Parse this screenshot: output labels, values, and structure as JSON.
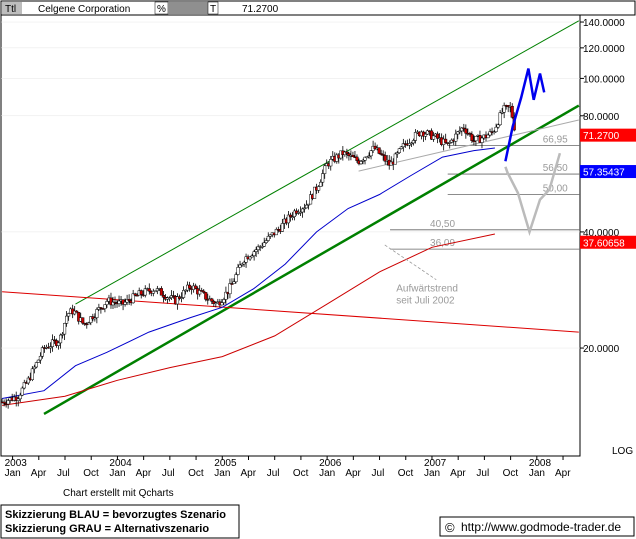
{
  "header": {
    "ttl_label": "Ttl",
    "title": "Celgene Corporation",
    "pct_label": "%",
    "t_label": "T",
    "last_value": "71.2700"
  },
  "footer": {
    "credit": "Chart erstellt mit Qcharts",
    "legend_blue": "Skizzierung BLAU = bevorzugtes Szenario",
    "legend_grey": "Skizzierung GRAU = Alternativszenario",
    "copyright_symbol": "©",
    "url": "http://www.godmode-trader.de"
  },
  "chart_data": {
    "type": "candlestick",
    "scale": "log",
    "ylim": [
      10.5,
      146
    ],
    "y_ticks": [
      {
        "value": 140,
        "label": "140.0000"
      },
      {
        "value": 120,
        "label": "120.0000"
      },
      {
        "value": 100,
        "label": "100.0000"
      },
      {
        "value": 80,
        "label": "80.0000"
      },
      {
        "value": 40,
        "label": "40.0000"
      },
      {
        "value": 20,
        "label": "20.0000"
      }
    ],
    "log_label": "LOG",
    "x_month_ticks": [
      {
        "t": 2003.0,
        "label": "Jan"
      },
      {
        "t": 2003.25,
        "label": "Apr"
      },
      {
        "t": 2003.5,
        "label": "Jul"
      },
      {
        "t": 2003.75,
        "label": "Oct"
      },
      {
        "t": 2004.0,
        "label": "Jan"
      },
      {
        "t": 2004.25,
        "label": "Apr"
      },
      {
        "t": 2004.5,
        "label": "Jul"
      },
      {
        "t": 2004.75,
        "label": "Oct"
      },
      {
        "t": 2005.0,
        "label": "Jan"
      },
      {
        "t": 2005.25,
        "label": "Apr"
      },
      {
        "t": 2005.5,
        "label": "Jul"
      },
      {
        "t": 2005.75,
        "label": "Oct"
      },
      {
        "t": 2006.0,
        "label": "Jan"
      },
      {
        "t": 2006.25,
        "label": "Apr"
      },
      {
        "t": 2006.5,
        "label": "Jul"
      },
      {
        "t": 2006.75,
        "label": "Oct"
      },
      {
        "t": 2007.0,
        "label": "Jan"
      },
      {
        "t": 2007.25,
        "label": "Apr"
      },
      {
        "t": 2007.5,
        "label": "Jul"
      },
      {
        "t": 2007.75,
        "label": "Oct"
      },
      {
        "t": 2008.0,
        "label": "Jan"
      },
      {
        "t": 2008.25,
        "label": "Apr"
      }
    ],
    "x_year_labels": [
      {
        "t": 2003.0,
        "label": "2003"
      },
      {
        "t": 2004.0,
        "label": "2004"
      },
      {
        "t": 2005.0,
        "label": "2005"
      },
      {
        "t": 2006.0,
        "label": "2006"
      },
      {
        "t": 2007.0,
        "label": "2007"
      },
      {
        "t": 2008.0,
        "label": "2008"
      }
    ],
    "price_path": [
      [
        2002.9,
        14.5
      ],
      [
        2003.05,
        15.0
      ],
      [
        2003.15,
        16.5
      ],
      [
        2003.3,
        20.0
      ],
      [
        2003.45,
        21.0
      ],
      [
        2003.52,
        24.5
      ],
      [
        2003.58,
        25.0
      ],
      [
        2003.68,
        23.0
      ],
      [
        2003.78,
        24.5
      ],
      [
        2003.9,
        26.5
      ],
      [
        2004.05,
        26.0
      ],
      [
        2004.2,
        27.5
      ],
      [
        2004.35,
        28.5
      ],
      [
        2004.55,
        26.5
      ],
      [
        2004.7,
        29.0
      ],
      [
        2004.85,
        27.0
      ],
      [
        2004.95,
        26.0
      ],
      [
        2005.05,
        28.0
      ],
      [
        2005.1,
        29.5
      ],
      [
        2005.2,
        34.0
      ],
      [
        2005.35,
        36.5
      ],
      [
        2005.55,
        41.0
      ],
      [
        2005.7,
        45.5
      ],
      [
        2005.8,
        47.0
      ],
      [
        2005.9,
        52.0
      ],
      [
        2006.0,
        60.0
      ],
      [
        2006.15,
        64.0
      ],
      [
        2006.3,
        61.0
      ],
      [
        2006.45,
        66.0
      ],
      [
        2006.6,
        59.5
      ],
      [
        2006.75,
        68.0
      ],
      [
        2006.9,
        73.0
      ],
      [
        2007.05,
        70.0
      ],
      [
        2007.15,
        67.0
      ],
      [
        2007.3,
        75.0
      ],
      [
        2007.4,
        69.0
      ],
      [
        2007.5,
        70.5
      ],
      [
        2007.58,
        72.5
      ],
      [
        2007.68,
        83.0
      ],
      [
        2007.75,
        84.0
      ],
      [
        2007.8,
        71.27
      ]
    ],
    "moving_averages": [
      {
        "color": "#0000cc",
        "points": [
          [
            2002.9,
            14.8
          ],
          [
            2003.3,
            15.5
          ],
          [
            2003.6,
            18.0
          ],
          [
            2003.9,
            19.5
          ],
          [
            2004.3,
            22.0
          ],
          [
            2004.7,
            24.0
          ],
          [
            2005.0,
            25.5
          ],
          [
            2005.3,
            28.5
          ],
          [
            2005.6,
            33.0
          ],
          [
            2005.9,
            40.0
          ],
          [
            2006.2,
            46.0
          ],
          [
            2006.5,
            50.0
          ],
          [
            2006.8,
            56.0
          ],
          [
            2007.1,
            62.5
          ],
          [
            2007.4,
            65.0
          ],
          [
            2007.6,
            66.0
          ]
        ]
      },
      {
        "color": "#cc0000",
        "points": [
          [
            2002.9,
            14.2
          ],
          [
            2003.5,
            15.0
          ],
          [
            2004.0,
            16.5
          ],
          [
            2004.5,
            17.8
          ],
          [
            2005.0,
            19.0
          ],
          [
            2005.5,
            21.5
          ],
          [
            2006.0,
            26.0
          ],
          [
            2006.5,
            31.5
          ],
          [
            2007.0,
            36.5
          ],
          [
            2007.6,
            39.5
          ]
        ]
      }
    ],
    "trendlines": [
      {
        "color": "#008000",
        "width": 2.5,
        "points": [
          [
            2003.3,
            13.5
          ],
          [
            2008.4,
            85.0
          ]
        ]
      },
      {
        "color": "#008000",
        "width": 1.0,
        "points": [
          [
            2003.6,
            26.0
          ],
          [
            2008.4,
            141.0
          ]
        ]
      },
      {
        "color": "#dd0000",
        "width": 1.0,
        "points": [
          [
            2002.9,
            28.0
          ],
          [
            2008.4,
            22.0
          ]
        ]
      },
      {
        "color": "#aaaaaa",
        "width": 1.0,
        "points": [
          [
            2006.3,
            57.5
          ],
          [
            2008.4,
            78.0
          ]
        ]
      }
    ],
    "horizontal_levels": [
      {
        "value": 66.95,
        "label": "66,95",
        "t_start": 2007.15,
        "t_end": 2008.4
      },
      {
        "value": 56.5,
        "label": "56,50",
        "t_start": 2007.15,
        "t_end": 2008.4
      },
      {
        "value": 50.0,
        "label": "50,00",
        "t_start": 2007.15,
        "t_end": 2008.4
      },
      {
        "value": 40.5,
        "label": "40,50",
        "t_start": 2006.6,
        "t_end": 2008.4
      },
      {
        "value": 36.09,
        "label": "36,09",
        "t_start": 2006.6,
        "t_end": 2008.4
      }
    ],
    "scenarios": [
      {
        "name": "blau",
        "color": "#0000ee",
        "width": 2.5,
        "points": [
          [
            2007.7,
            61.0
          ],
          [
            2007.77,
            75.0
          ],
          [
            2007.85,
            89.0
          ],
          [
            2007.92,
            106.0
          ],
          [
            2007.97,
            88.0
          ],
          [
            2008.03,
            103.0
          ],
          [
            2008.07,
            92.0
          ]
        ]
      },
      {
        "name": "grau",
        "color": "#bbbbbb",
        "width": 2.5,
        "points": [
          [
            2007.7,
            59.0
          ],
          [
            2007.72,
            57.0
          ],
          [
            2007.82,
            50.5
          ],
          [
            2007.93,
            40.0
          ],
          [
            2008.03,
            48.5
          ],
          [
            2008.12,
            51.5
          ],
          [
            2008.22,
            64.0
          ]
        ]
      }
    ],
    "price_tags": [
      {
        "value": 71.27,
        "label": "71.2700",
        "bg": "#ff0000",
        "fg": "#ffffff"
      },
      {
        "value": 57.35437,
        "label": "57.35437",
        "bg": "#0000ff",
        "fg": "#ffffff"
      },
      {
        "value": 37.60658,
        "label": "37.60658",
        "bg": "#ff0000",
        "fg": "#ffffff"
      }
    ],
    "annotations": [
      {
        "text_lines": [
          "Aufwärtstrend",
          "seit Juli 2002"
        ],
        "anchor_t": 2006.85,
        "anchor_v": 28.0,
        "pointer_t": 2006.55,
        "pointer_v": 37.0
      }
    ]
  }
}
